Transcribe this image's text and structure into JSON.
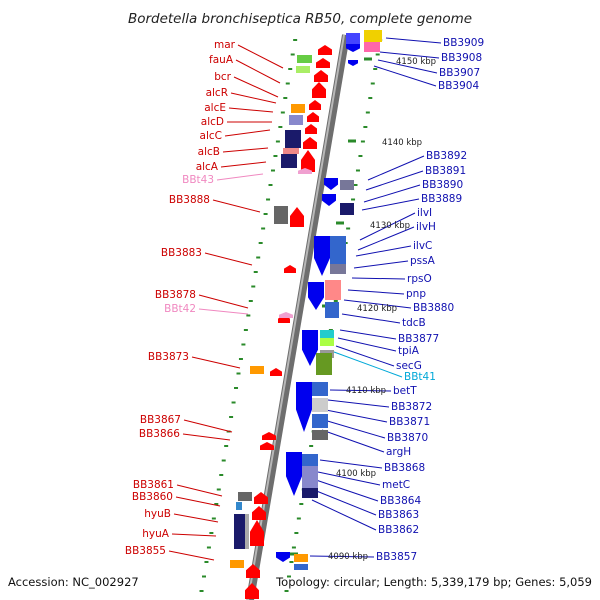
{
  "title": "Bordetella bronchiseptica RB50, complete genome",
  "footer": {
    "accession": "Accession: NC_002927",
    "topology": "Topology: circular; Length: 5,339,179 bp; Genes: 5,059"
  },
  "left_labels": [
    "mar",
    "fauA",
    "bcr",
    "alcR",
    "alcE",
    "alcD",
    "alcC",
    "alcB",
    "alcA",
    "BBt43",
    "BB3888",
    "BB3883",
    "BB3878",
    "BBt42",
    "BB3873",
    "BB3867",
    "BB3866",
    "BB3861",
    "BB3860",
    "hyuB",
    "hyuA",
    "BB3855"
  ],
  "right_labels": [
    "BB3909",
    "BB3908",
    "BB3907",
    "BB3904",
    "BB3892",
    "BB3891",
    "BB3890",
    "BB3889",
    "ilvI",
    "ilvH",
    "ilvC",
    "pssA",
    "rpsO",
    "pnp",
    "BB3880",
    "tdcB",
    "BB3877",
    "tpiA",
    "secG",
    "BBt41",
    "betT",
    "BB3872",
    "BB3871",
    "BB3870",
    "argH",
    "BB3868",
    "metC",
    "BB3864",
    "BB3863",
    "BB3862",
    "BB3857"
  ],
  "scale_labels": [
    "4150 kbp",
    "4140 kbp",
    "4130 kbp",
    "4120 kbp",
    "4110 kbp",
    "4100 kbp",
    "4090 kbp"
  ],
  "colors": {
    "forward": "#ff0000",
    "reverse": "#0000ee",
    "backbone": "#888888",
    "tick": "#2a8a2a",
    "rna": "#f0a0d0"
  }
}
